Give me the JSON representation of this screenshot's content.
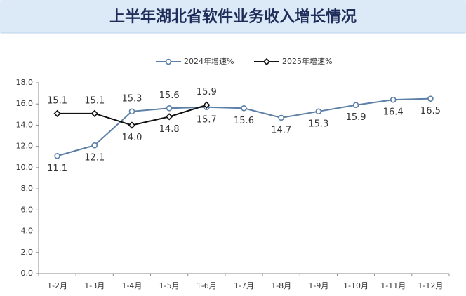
{
  "chart_data": {
    "type": "line",
    "title": "上半年湖北省软件业务收入增长情况",
    "categories": [
      "1-2月",
      "1-3月",
      "1-4月",
      "1-5月",
      "1-6月",
      "1-7月",
      "1-8月",
      "1-9月",
      "1-10月",
      "1-11月",
      "1-12月"
    ],
    "series": [
      {
        "name": "2024年增速%",
        "color": "#5b7fa6",
        "marker": "circle",
        "values": [
          11.1,
          12.1,
          15.3,
          15.6,
          15.7,
          15.6,
          14.7,
          15.3,
          15.9,
          16.4,
          16.5
        ],
        "value_labels": [
          "11.1",
          "12.1",
          "15.3",
          "15.6",
          "15.7",
          "15.6",
          "14.7",
          "15.3",
          "15.9",
          "16.4",
          "16.5"
        ]
      },
      {
        "name": "2025年增速%",
        "color": "#111111",
        "marker": "diamond",
        "values": [
          15.1,
          15.1,
          14.0,
          14.8,
          15.9,
          null,
          null,
          null,
          null,
          null,
          null
        ],
        "value_labels": [
          "15.1",
          "15.1",
          "14.0",
          "14.8",
          "15.9",
          null,
          null,
          null,
          null,
          null,
          null
        ]
      }
    ],
    "ylim": [
      0,
      18
    ],
    "yticks": [
      {
        "value": 0,
        "label": "0.0"
      },
      {
        "value": 2,
        "label": "2.0"
      },
      {
        "value": 4,
        "label": "4.0"
      },
      {
        "value": 6,
        "label": "6.0"
      },
      {
        "value": 8,
        "label": "8.0"
      },
      {
        "value": 10,
        "label": "10.0"
      },
      {
        "value": 12,
        "label": "12.0"
      },
      {
        "value": 14,
        "label": "14.0"
      },
      {
        "value": 16,
        "label": "16.0"
      },
      {
        "value": 18,
        "label": "18.0"
      }
    ],
    "grid": false,
    "legend": "top"
  }
}
